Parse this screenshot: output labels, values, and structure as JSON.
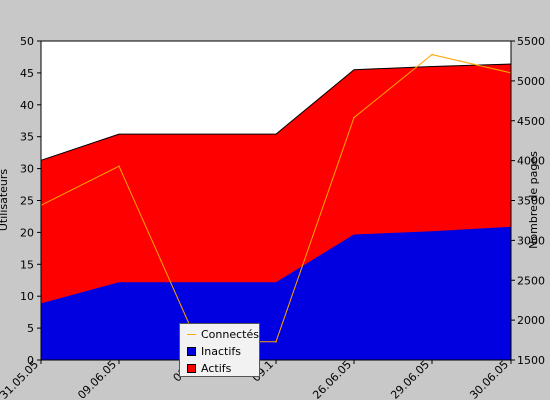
{
  "chart_data": {
    "type": "area",
    "categories": [
      "31.05.05",
      "09.06.05",
      "09.0",
      "09.1",
      "26.06.05",
      "29.06.05",
      "30.06.05"
    ],
    "series": [
      {
        "name": "Inactifs",
        "axis": "left",
        "values": [
          8.8,
          12.1,
          12.1,
          12.1,
          19.6,
          20.1,
          20.8
        ],
        "color": "#0000e0"
      },
      {
        "name": "Actifs",
        "axis": "left",
        "values": [
          31.3,
          35.4,
          35.4,
          35.4,
          45.5,
          46.0,
          46.4
        ],
        "color": "#ff0000"
      },
      {
        "name": "Connectés",
        "axis": "right",
        "values": [
          3440,
          3930,
          1730,
          1730,
          4540,
          5330,
          5100
        ],
        "color": "#ffa500"
      }
    ],
    "ylabel": "Utilisateurs",
    "y2label": "Nombre de pages",
    "ylim": [
      0,
      50
    ],
    "y2lim": [
      1500,
      5500
    ],
    "yticks": [
      0,
      5,
      10,
      15,
      20,
      25,
      30,
      35,
      40,
      45,
      50
    ],
    "y2ticks": [
      1500,
      2000,
      2500,
      3000,
      3500,
      4000,
      4500,
      5000,
      5500
    ],
    "grid": false,
    "legend": "bottom-center",
    "colors": {
      "background": "#c8c8c8",
      "plot": "#ffffff",
      "legend_bg": "#f2f2f2"
    }
  },
  "legend": {
    "items": [
      {
        "label": "Connectés",
        "color": "#ffa500",
        "kind": "line"
      },
      {
        "label": "Inactifs",
        "color": "#0000e0",
        "kind": "box"
      },
      {
        "label": "Actifs",
        "color": "#ff0000",
        "kind": "box"
      }
    ]
  }
}
